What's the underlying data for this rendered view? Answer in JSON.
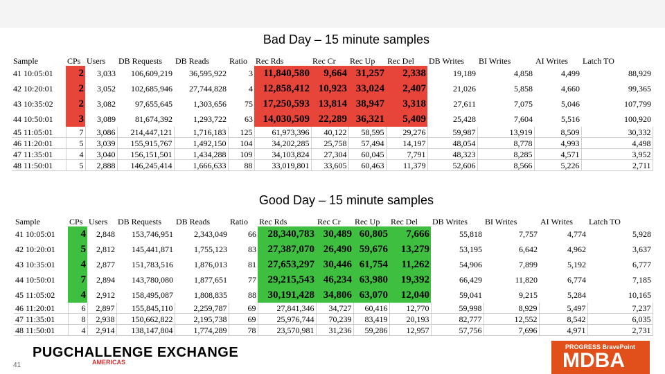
{
  "bad": {
    "title": "Bad Day – 15 minute samples",
    "headers": [
      "Sample",
      "CPs",
      "Users",
      "DB Requests",
      "DB Reads",
      "Ratio",
      "Rec Rds",
      "Rec Cr",
      "Rec Up",
      "Rec Del",
      "DB Writes",
      "BI Writes",
      "AI Writes",
      "Latch TO"
    ],
    "rows": [
      [
        "41 10:05:01",
        "2",
        "3,033",
        "106,609,219",
        "36,595,922",
        "3",
        "11,840,580",
        "9,664",
        "31,257",
        "2,338",
        "19,189",
        "4,858",
        "4,499",
        "88,929"
      ],
      [
        "42 10:20:01",
        "2",
        "3,052",
        "102,685,946",
        "27,744,828",
        "4",
        "12,858,412",
        "10,923",
        "33,024",
        "2,407",
        "21,026",
        "5,858",
        "4,660",
        "99,365"
      ],
      [
        "43 10:35:02",
        "2",
        "3,082",
        "97,655,645",
        "1,303,656",
        "75",
        "17,250,593",
        "13,814",
        "38,947",
        "3,318",
        "27,611",
        "7,075",
        "5,046",
        "107,799"
      ],
      [
        "44 10:50:01",
        "3",
        "3,089",
        "81,674,392",
        "1,293,722",
        "63",
        "14,030,509",
        "22,289",
        "36,321",
        "5,409",
        "25,428",
        "7,604",
        "5,516",
        "100,920"
      ],
      [
        "45 11:05:01",
        "7",
        "3,086",
        "214,447,121",
        "1,716,183",
        "125",
        "61,973,396",
        "40,122",
        "58,595",
        "29,276",
        "59,987",
        "13,919",
        "8,509",
        "30,332"
      ],
      [
        "46 11:20:01",
        "5",
        "3,039",
        "155,915,767",
        "1,492,150",
        "104",
        "34,202,285",
        "25,758",
        "57,494",
        "14,197",
        "48,054",
        "8,778",
        "4,993",
        "4,498"
      ],
      [
        "47 11:35:01",
        "4",
        "3,040",
        "156,151,501",
        "1,434,288",
        "109",
        "34,103,824",
        "27,304",
        "60,045",
        "7,791",
        "48,323",
        "8,285",
        "4,571",
        "3,952"
      ],
      [
        "48 11:50:01",
        "5",
        "2,888",
        "146,245,414",
        "1,666,633",
        "88",
        "33,019,801",
        "33,605",
        "60,463",
        "11,379",
        "52,606",
        "8,566",
        "5,226",
        "2,711"
      ]
    ]
  },
  "good": {
    "title": "Good Day – 15 minute samples",
    "headers": [
      "Sample",
      "CPs",
      "Users",
      "DB Requests",
      "DB Reads",
      "Ratio",
      "Rec Rds",
      "Rec Cr",
      "Rec Up",
      "Rec Del",
      "DB Writes",
      "BI Writes",
      "AI Writes",
      "Latch TO"
    ],
    "rows": [
      [
        "41 10:05:01",
        "4",
        "2,848",
        "153,746,951",
        "2,343,049",
        "66",
        "28,340,783",
        "30,489",
        "60,805",
        "7,666",
        "55,818",
        "7,757",
        "4,774",
        "5,928"
      ],
      [
        "42 10:20:01",
        "5",
        "2,812",
        "145,441,871",
        "1,755,123",
        "83",
        "27,387,070",
        "26,490",
        "59,676",
        "13,279",
        "53,195",
        "6,642",
        "4,962",
        "3,637"
      ],
      [
        "43 10:35:01",
        "4",
        "2,877",
        "151,783,516",
        "1,876,013",
        "81",
        "27,653,297",
        "30,446",
        "61,754",
        "11,262",
        "54,906",
        "7,899",
        "5,192",
        "6,777"
      ],
      [
        "44 10:50:01",
        "7",
        "2,894",
        "143,780,080",
        "1,877,651",
        "77",
        "29,215,543",
        "46,234",
        "63,980",
        "19,392",
        "66,429",
        "11,820",
        "6,774",
        "7,185"
      ],
      [
        "45 11:05:02",
        "4",
        "2,912",
        "158,495,087",
        "1,808,835",
        "88",
        "30,191,428",
        "34,806",
        "63,070",
        "12,040",
        "59,041",
        "9,215",
        "5,284",
        "10,165"
      ],
      [
        "46 11:20:01",
        "6",
        "2,897",
        "155,845,110",
        "2,259,787",
        "69",
        "27,841,346",
        "34,727",
        "60,416",
        "12,770",
        "59,998",
        "8,929",
        "5,497",
        "7,237"
      ],
      [
        "47 11:35:01",
        "8",
        "2,938",
        "150,662,822",
        "2,195,738",
        "69",
        "25,976,744",
        "70,239",
        "83,419",
        "20,193",
        "82,777",
        "12,552",
        "8,542",
        "6,035"
      ],
      [
        "48 11:50:01",
        "4",
        "2,914",
        "138,147,804",
        "1,774,289",
        "78",
        "23,570,981",
        "31,236",
        "59,286",
        "12,957",
        "57,756",
        "7,696",
        "4,971",
        "2,731"
      ]
    ]
  },
  "footer": {
    "left_logo": "PUGCHALLENGE EXCHANGE",
    "left_sub": "AMERICAS",
    "page_number": "41",
    "right_brand": "PROGRESS",
    "right_sub": "BravePoint",
    "right_logo": "MDBA"
  },
  "colors": {
    "bad_highlight": "#e8453a",
    "good_highlight": "#3fbf3f",
    "brand_orange": "#e1501b"
  }
}
